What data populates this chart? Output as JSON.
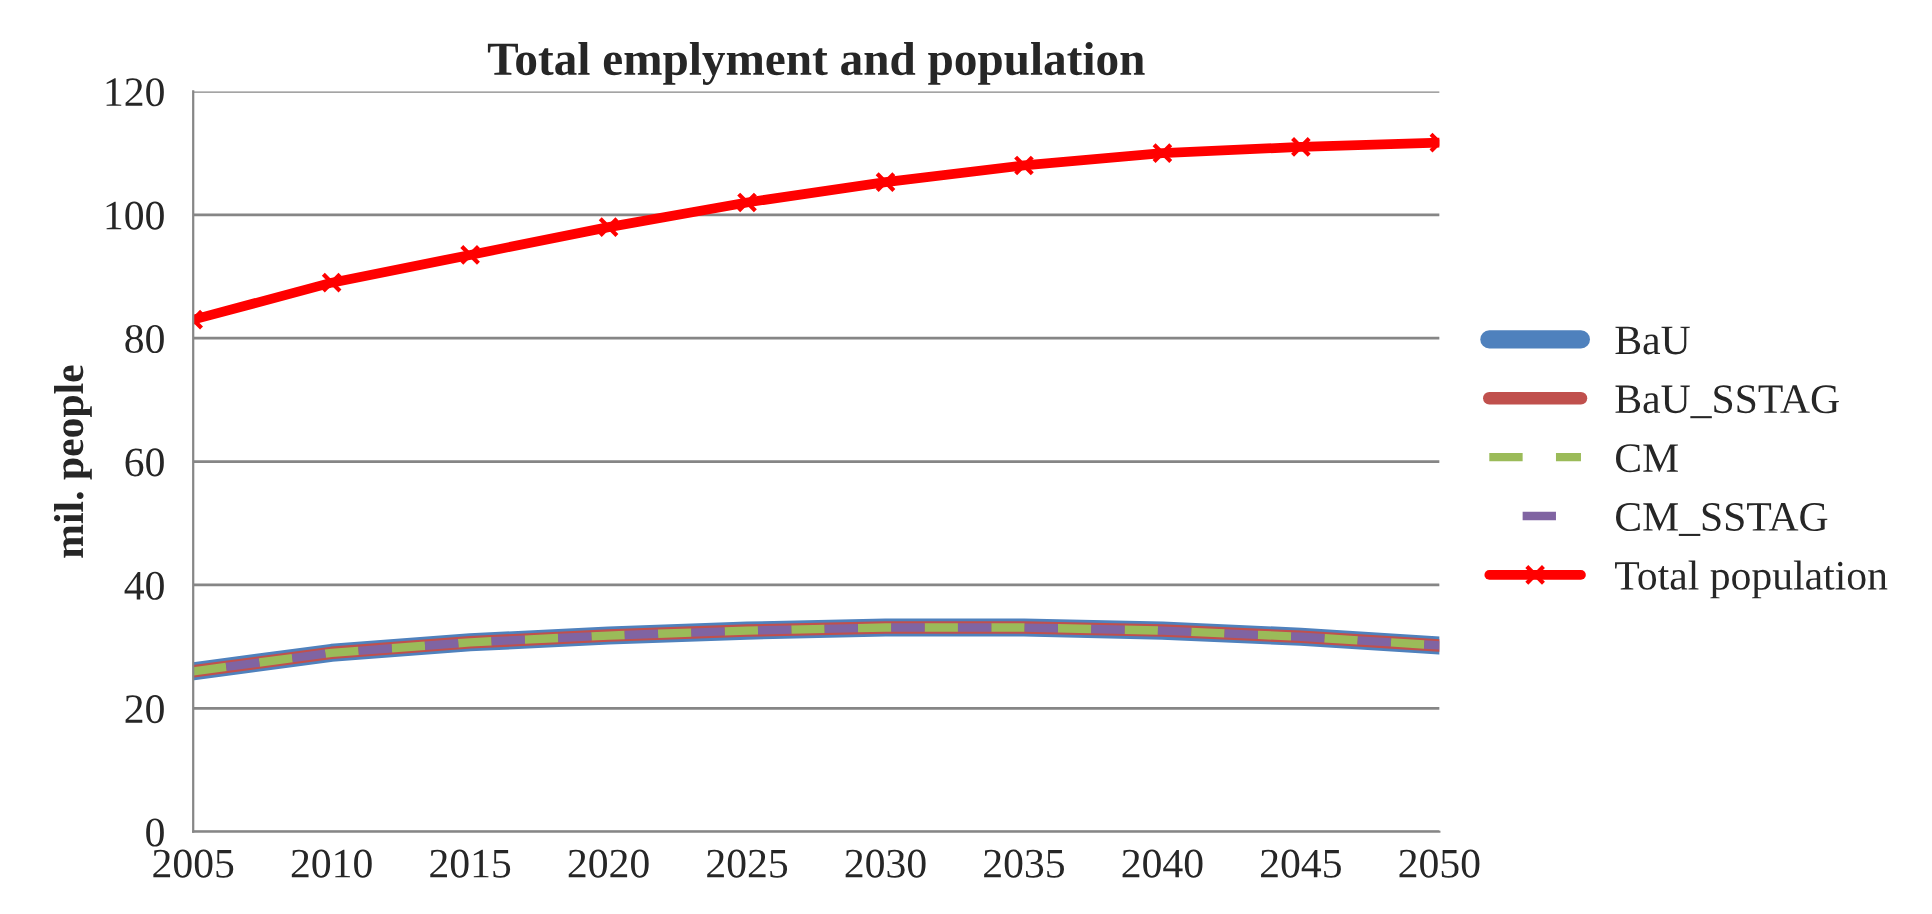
{
  "chart_data": {
    "type": "line",
    "title": "Total emplyment and population",
    "ylabel": "mil. people",
    "x": [
      2005,
      2010,
      2015,
      2020,
      2025,
      2030,
      2035,
      2040,
      2045,
      2050
    ],
    "series": [
      {
        "name": "BaU",
        "color": "#4f81bd",
        "line_style": "solid",
        "marker": "none",
        "values": [
          26,
          29,
          30.7,
          31.8,
          32.6,
          33.1,
          33.1,
          32.6,
          31.6,
          30.2
        ]
      },
      {
        "name": "BaU_SSTAG",
        "color": "#c0504d",
        "line_style": "solid",
        "marker": "none",
        "values": [
          26,
          29,
          30.7,
          31.8,
          32.6,
          33.1,
          33.1,
          32.6,
          31.6,
          30.2
        ]
      },
      {
        "name": "CM",
        "color": "#9bbb59",
        "line_style": "dashed",
        "marker": "none",
        "values": [
          26,
          29,
          30.7,
          31.8,
          32.6,
          33.1,
          33.1,
          32.6,
          31.6,
          30.2
        ]
      },
      {
        "name": "CM_SSTAG",
        "color": "#8064a2",
        "line_style": "dashed",
        "marker": "none",
        "values": [
          26,
          29,
          30.7,
          31.8,
          32.6,
          33.1,
          33.1,
          32.6,
          31.6,
          30.2
        ]
      },
      {
        "name": "Total population",
        "color": "#ff0000",
        "line_style": "solid",
        "marker": "cross",
        "values": [
          83,
          89,
          93.5,
          98,
          102,
          105.3,
          108,
          110,
          111,
          111.7
        ]
      }
    ],
    "xlim": [
      2005,
      2050
    ],
    "xticks": [
      2005,
      2010,
      2015,
      2020,
      2025,
      2030,
      2035,
      2040,
      2045,
      2050
    ],
    "ylim": [
      0,
      120
    ],
    "yticks": [
      0,
      20,
      40,
      60,
      80,
      100,
      120
    ],
    "grid": "y",
    "legend": "right"
  }
}
